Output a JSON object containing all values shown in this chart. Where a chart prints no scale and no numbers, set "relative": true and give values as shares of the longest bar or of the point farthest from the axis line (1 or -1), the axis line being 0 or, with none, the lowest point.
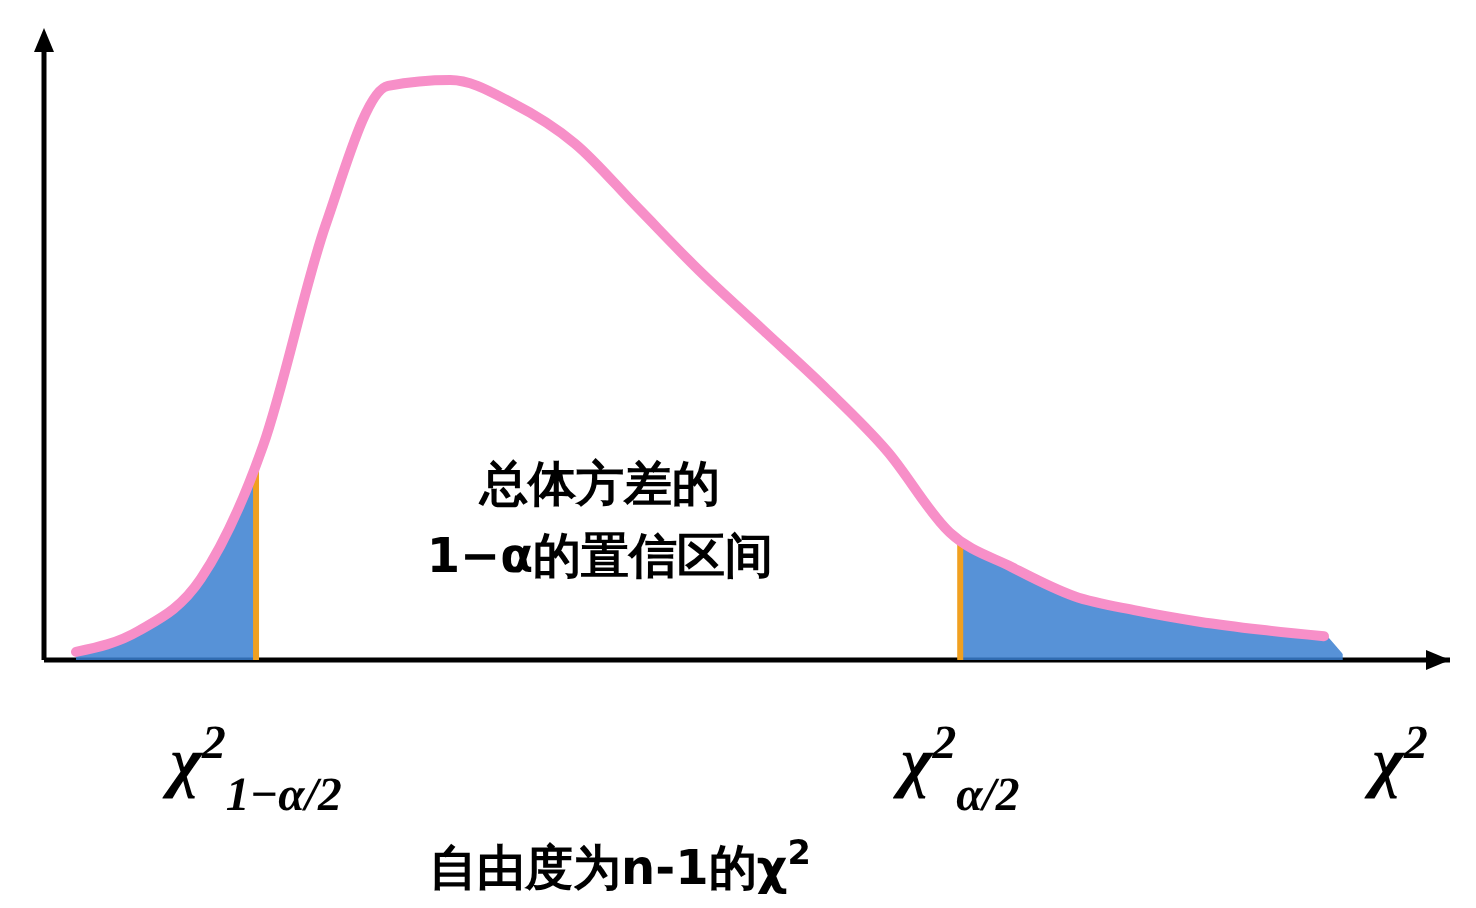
{
  "chart_data": {
    "type": "line",
    "relative": true,
    "tick_labels": false,
    "xlabel": "自由度为n-1的χ$^{2}$",
    "categories": [
      null,
      null,
      null,
      null,
      null,
      null,
      null,
      null,
      null,
      null,
      null,
      null,
      null,
      null,
      null,
      null,
      null,
      null,
      null,
      null,
      null
    ],
    "series": [
      {
        "color": "#f78fc8",
        "values": [
          0.014,
          0.05,
          0.14,
          0.37,
          0.75,
          0.99,
          1,
          0.96,
          0.89,
          0.78,
          0.67,
          0.57,
          0.47,
          0.36,
          0.22,
          0.16,
          0.11,
          0.085,
          0.066,
          0.052,
          0.041
        ]
      }
    ],
    "annotations": [
      "总体方差的\n1−α的置信区间",
      "χ$^{2}$$_{1−α/2}$",
      "χ$^{2}$$_{α/2}$",
      "χ$^{2}$"
    ]
  }
}
